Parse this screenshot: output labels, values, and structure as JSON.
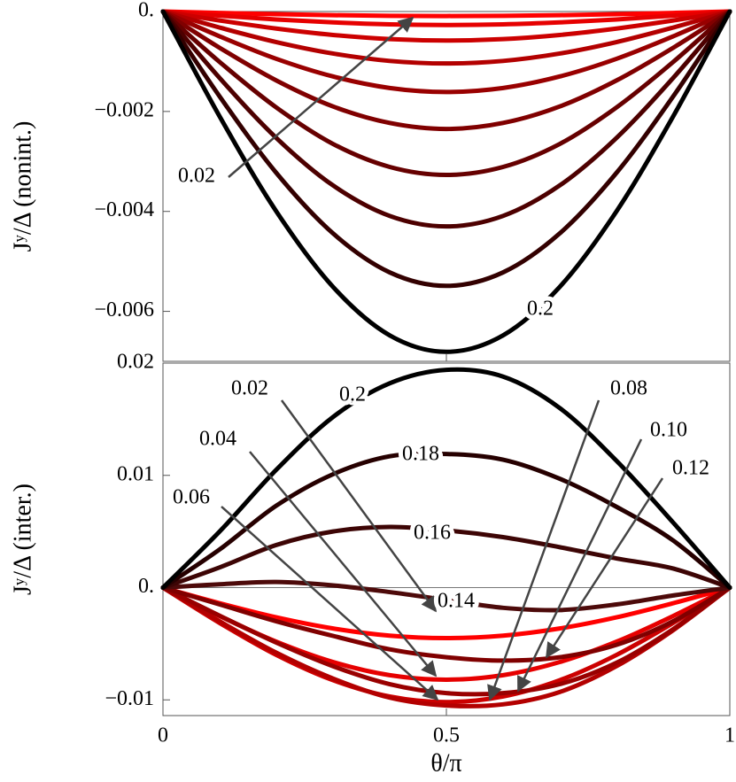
{
  "chart_data": [
    {
      "type": "line",
      "y_label": "Jʸ/Δ (nonint.)",
      "x": [
        0,
        0.1,
        0.2,
        0.3,
        0.4,
        0.5,
        0.6,
        0.7,
        0.8,
        0.9,
        1
      ],
      "xlim": [
        0,
        1
      ],
      "xticks": [
        0,
        0.5,
        1
      ],
      "ylim": [
        -0.007,
        0
      ],
      "yticks": [
        {
          "value": 0,
          "label": "0."
        },
        {
          "value": -0.002,
          "label": "−0.002"
        },
        {
          "value": -0.004,
          "label": "−0.004"
        },
        {
          "value": -0.006,
          "label": "−0.006"
        }
      ],
      "grid": false,
      "series": [
        {
          "name": "0.02",
          "color": "#ff0000",
          "values": [
            0,
            -2.8e-05,
            -5.3e-05,
            -7.3e-05,
            -8.6e-05,
            -9e-05,
            -8.6e-05,
            -7.3e-05,
            -5.3e-05,
            -2.8e-05,
            0
          ]
        },
        {
          "color": "#e60000",
          "values": [
            0,
            -8.3e-05,
            -0.000159,
            -0.000218,
            -0.000257,
            -0.00027,
            -0.000257,
            -0.000218,
            -0.000159,
            -8.3e-05,
            0
          ]
        },
        {
          "color": "#cc0000",
          "values": [
            0,
            -0.000179,
            -0.000341,
            -0.000469,
            -0.000552,
            -0.00058,
            -0.000552,
            -0.000469,
            -0.000341,
            -0.000179,
            0
          ]
        },
        {
          "color": "#b30000",
          "values": [
            0,
            -0.000321,
            -0.000612,
            -0.000841,
            -0.000989,
            -0.00104,
            -0.000989,
            -0.000841,
            -0.000612,
            -0.000321,
            0
          ]
        },
        {
          "color": "#990000",
          "values": [
            0,
            -0.000497,
            -0.000947,
            -0.0013,
            -0.00153,
            -0.00161,
            -0.00153,
            -0.0013,
            -0.000947,
            -0.000497,
            0
          ]
        },
        {
          "color": "#800000",
          "values": [
            0,
            -0.000726,
            -0.00138,
            -0.0019,
            -0.00223,
            -0.00235,
            -0.00223,
            -0.0019,
            -0.00138,
            -0.000726,
            0
          ]
        },
        {
          "color": "#660000",
          "values": [
            0,
            -0.00101,
            -0.00192,
            -0.00265,
            -0.00311,
            -0.00327,
            -0.00311,
            -0.00265,
            -0.00192,
            -0.00101,
            0
          ]
        },
        {
          "color": "#4d0000",
          "values": [
            0,
            -0.00133,
            -0.00253,
            -0.00348,
            -0.00409,
            -0.0043,
            -0.00409,
            -0.00348,
            -0.00253,
            -0.00133,
            0
          ]
        },
        {
          "color": "#330000",
          "values": [
            0,
            -0.0017,
            -0.00323,
            -0.00444,
            -0.00522,
            -0.00549,
            -0.00522,
            -0.00444,
            -0.00323,
            -0.0017,
            0
          ]
        },
        {
          "name": "0.2",
          "color": "#000000",
          "values": [
            0,
            -0.0021,
            -0.004,
            -0.00551,
            -0.00648,
            -0.00681,
            -0.00648,
            -0.00551,
            -0.004,
            -0.0021,
            0
          ]
        }
      ]
    },
    {
      "type": "line",
      "y_label": "Jʸ/Δ (inter.)",
      "x_label": "θ/π",
      "x": [
        0,
        0.1,
        0.2,
        0.3,
        0.4,
        0.5,
        0.6,
        0.7,
        0.8,
        0.9,
        1
      ],
      "xlim": [
        0,
        1
      ],
      "xticks": [
        0,
        0.5,
        1
      ],
      "ylim": [
        -0.0114,
        0.02
      ],
      "yticks": [
        0.02,
        0.01,
        {
          "value": 0,
          "label": "0."
        },
        {
          "value": -0.01,
          "label": "−0.01"
        }
      ],
      "grid": false,
      "series": [
        {
          "name": "0.02",
          "color": "#ff0000",
          "values": [
            0,
            -0.00139,
            -0.00265,
            -0.00364,
            -0.00428,
            -0.0045,
            -0.00428,
            -0.00364,
            -0.00265,
            -0.00139,
            0
          ]
        },
        {
          "name": "0.04",
          "color": "#e60000",
          "values": [
            0,
            -0.00253,
            -0.00482,
            -0.00663,
            -0.0078,
            -0.0082,
            -0.0078,
            -0.00663,
            -0.00482,
            -0.00253,
            0
          ]
        },
        {
          "name": "0.06",
          "color": "#cc0000",
          "values": [
            0,
            -0.00315,
            -0.006,
            -0.00825,
            -0.0097,
            -0.0102,
            -0.0097,
            -0.00825,
            -0.006,
            -0.00315,
            0
          ]
        },
        {
          "name": "0.08",
          "color": "#b30000",
          "values": [
            0,
            -0.003,
            -0.0058,
            -0.0081,
            -0.0098,
            -0.0105,
            -0.0104,
            -0.0093,
            -0.007,
            -0.0038,
            0
          ]
        },
        {
          "name": "0.10",
          "color": "#990000",
          "values": [
            0,
            -0.0025,
            -0.0049,
            -0.007,
            -0.0086,
            -0.0094,
            -0.0094,
            -0.0086,
            -0.0067,
            -0.0037,
            0
          ]
        },
        {
          "name": "0.12",
          "color": "#800000",
          "values": [
            0,
            -0.0015,
            -0.003,
            -0.0043,
            -0.0055,
            -0.0062,
            -0.0065,
            -0.0062,
            -0.0051,
            -0.003,
            0
          ]
        },
        {
          "name": "0.14",
          "color": "#4d0a0a",
          "values": [
            0,
            0.0003,
            0.0005,
            0.0002,
            -0.0004,
            -0.0011,
            -0.0018,
            -0.002,
            -0.0015,
            -0.0007,
            0
          ]
        },
        {
          "name": "0.16",
          "color": "#3d0505",
          "values": [
            0,
            0.0018,
            0.0038,
            0.005,
            0.0054,
            0.0051,
            0.0045,
            0.0036,
            0.0026,
            0.0017,
            0
          ]
        },
        {
          "name": "0.18",
          "color": "#260000",
          "values": [
            0,
            0.0034,
            0.0073,
            0.0101,
            0.0117,
            0.0119,
            0.0114,
            0.0097,
            0.0072,
            0.0042,
            0
          ]
        },
        {
          "name": "0.2",
          "color": "#000000",
          "values": [
            0,
            0.005,
            0.0105,
            0.0152,
            0.0182,
            0.0194,
            0.0188,
            0.016,
            0.0113,
            0.0058,
            0
          ]
        }
      ]
    }
  ]
}
